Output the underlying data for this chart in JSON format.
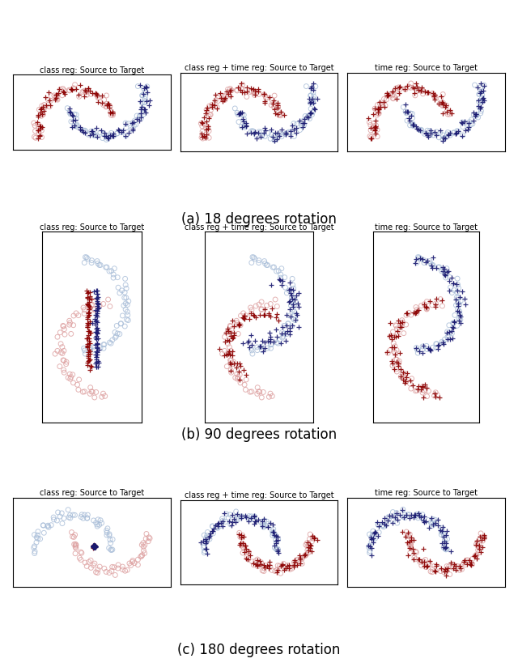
{
  "titles_row": [
    "class reg: Source to Target",
    "class reg + time reg: Source to Target",
    "time reg: Source to Target"
  ],
  "row_labels": [
    "(a) 18 degrees rotation",
    "(b) 90 degrees rotation",
    "(c) 180 degrees rotation"
  ],
  "src_red": "#8B0000",
  "src_blue": "#191970",
  "tgt_red": "#DDA0A0",
  "tgt_blue": "#A8BDD8",
  "figsize": [
    6.4,
    8.24
  ],
  "dpi": 100,
  "title_fontsize": 7.0,
  "caption_fontsize": 12
}
